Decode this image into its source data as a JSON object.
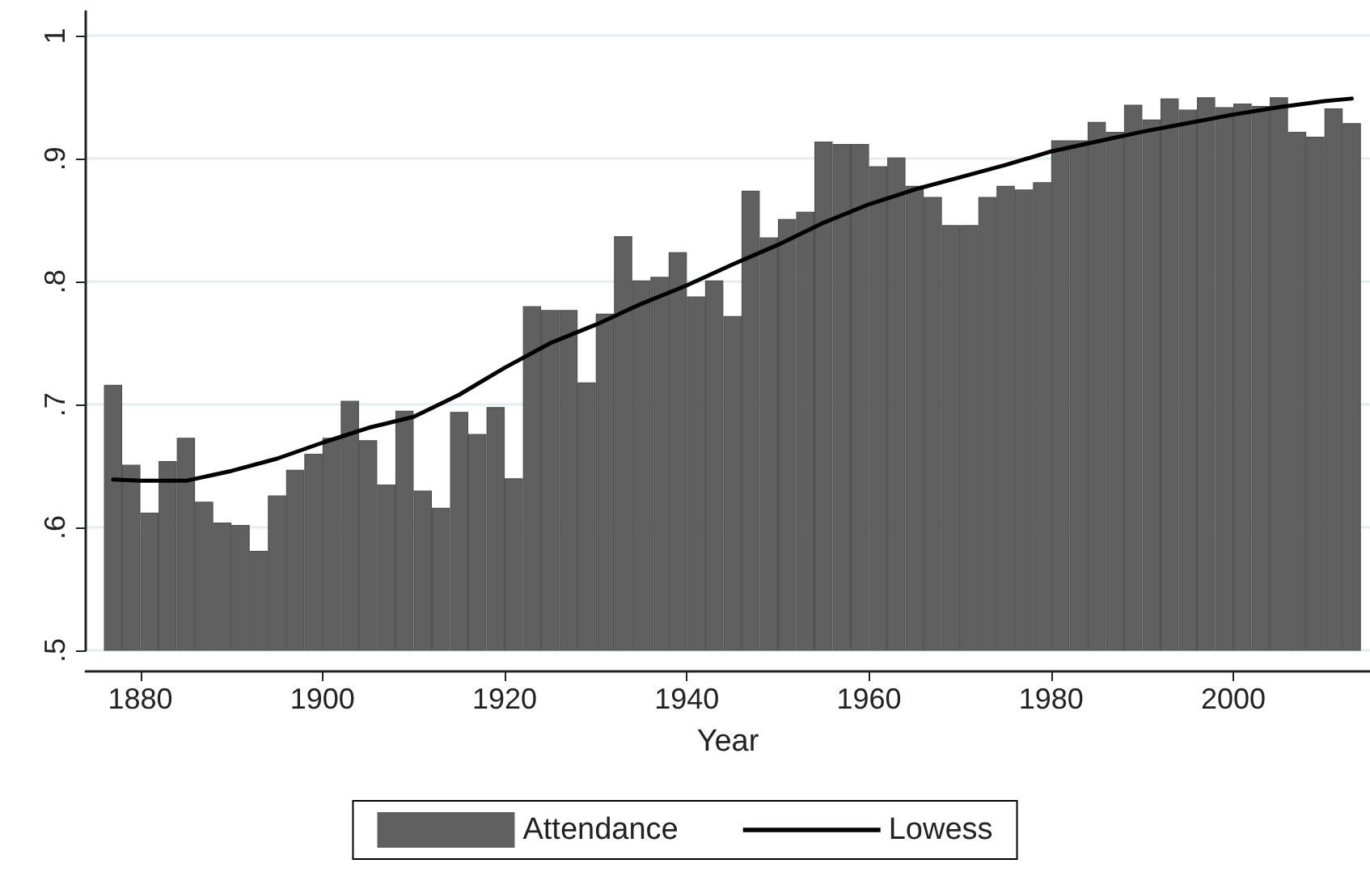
{
  "chart_data": {
    "type": "bar",
    "xlabel": "Year",
    "x": [
      1877,
      1879,
      1881,
      1883,
      1885,
      1887,
      1889,
      1891,
      1893,
      1895,
      1897,
      1899,
      1901,
      1903,
      1905,
      1907,
      1909,
      1911,
      1913,
      1915,
      1917,
      1919,
      1921,
      1923,
      1925,
      1927,
      1929,
      1931,
      1933,
      1935,
      1937,
      1939,
      1941,
      1943,
      1945,
      1947,
      1949,
      1951,
      1953,
      1955,
      1957,
      1959,
      1961,
      1963,
      1965,
      1967,
      1969,
      1971,
      1973,
      1975,
      1977,
      1979,
      1981,
      1983,
      1985,
      1987,
      1989,
      1991,
      1993,
      1995,
      1997,
      1999,
      2001,
      2003,
      2005,
      2007,
      2009,
      2011,
      2013
    ],
    "series": [
      {
        "name": "Attendance",
        "color": "#606060",
        "values": [
          0.716,
          0.651,
          0.612,
          0.654,
          0.673,
          0.621,
          0.604,
          0.602,
          0.581,
          0.626,
          0.647,
          0.66,
          0.673,
          0.703,
          0.671,
          0.635,
          0.695,
          0.63,
          0.616,
          0.694,
          0.676,
          0.698,
          0.64,
          0.78,
          0.777,
          0.777,
          0.718,
          0.774,
          0.837,
          0.801,
          0.804,
          0.824,
          0.788,
          0.801,
          0.772,
          0.874,
          0.836,
          0.851,
          0.857,
          0.914,
          0.912,
          0.912,
          0.894,
          0.901,
          0.878,
          0.869,
          0.846,
          0.846,
          0.869,
          0.878,
          0.875,
          0.881,
          0.915,
          0.915,
          0.93,
          0.922,
          0.944,
          0.932,
          0.949,
          0.94,
          0.95,
          0.942,
          0.945,
          0.943,
          0.95,
          0.922,
          0.918,
          0.941,
          0.929
        ]
      },
      {
        "name": "Lowess",
        "type": "line",
        "color": "#000000",
        "x": [
          1877,
          1880,
          1885,
          1890,
          1895,
          1900,
          1905,
          1910,
          1915,
          1920,
          1925,
          1930,
          1935,
          1940,
          1945,
          1950,
          1955,
          1960,
          1965,
          1970,
          1975,
          1980,
          1985,
          1990,
          1995,
          2000,
          2005,
          2010,
          2013
        ],
        "values": [
          0.639,
          0.638,
          0.638,
          0.646,
          0.656,
          0.669,
          0.681,
          0.69,
          0.708,
          0.73,
          0.75,
          0.765,
          0.782,
          0.797,
          0.814,
          0.83,
          0.848,
          0.863,
          0.875,
          0.885,
          0.895,
          0.906,
          0.914,
          0.922,
          0.929,
          0.936,
          0.942,
          0.947,
          0.949
        ]
      }
    ],
    "xlim": [
      1874,
      2015
    ],
    "xticks": [
      1880,
      1900,
      1920,
      1940,
      1960,
      1980,
      2000
    ],
    "ylim": [
      0.5,
      1.02
    ],
    "yticks": [
      {
        "value": 0.5,
        "label": ".5"
      },
      {
        "value": 0.6,
        "label": ".6"
      },
      {
        "value": 0.7,
        "label": ".7"
      },
      {
        "value": 0.8,
        "label": ".8"
      },
      {
        "value": 0.9,
        "label": ".9"
      },
      {
        "value": 1,
        "label": "1"
      }
    ],
    "grid": "y",
    "legend": "bottom",
    "marker": "none",
    "line_style": "solid"
  }
}
